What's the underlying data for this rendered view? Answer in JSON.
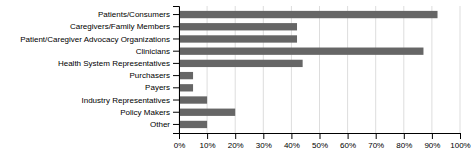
{
  "chart_data": {
    "type": "bar",
    "orientation": "horizontal",
    "categories": [
      "Other",
      "Policy Makers",
      "Industry Representatives",
      "Payers",
      "Purchasers",
      "Health System Representatives",
      "Clinicians",
      "Patient/Caregiver Advocacy Organizations",
      "Caregivers/Family Members",
      "Patients/Consumers"
    ],
    "values": [
      10,
      20,
      10,
      5,
      5,
      44,
      87,
      42,
      42,
      92
    ],
    "color": "#666666",
    "xlim": [
      0,
      100
    ],
    "xticks": [
      {
        "value": 0,
        "label": "0%"
      },
      {
        "value": 10,
        "label": "10%"
      },
      {
        "value": 20,
        "label": "20%"
      },
      {
        "value": 30,
        "label": "30%"
      },
      {
        "value": 40,
        "label": "40%"
      },
      {
        "value": 50,
        "label": "50%"
      },
      {
        "value": 60,
        "label": "60%"
      },
      {
        "value": 70,
        "label": "70%"
      },
      {
        "value": 80,
        "label": "80%"
      },
      {
        "value": 90,
        "label": "90%"
      },
      {
        "value": 100,
        "label": "100%"
      }
    ],
    "grid": true
  }
}
